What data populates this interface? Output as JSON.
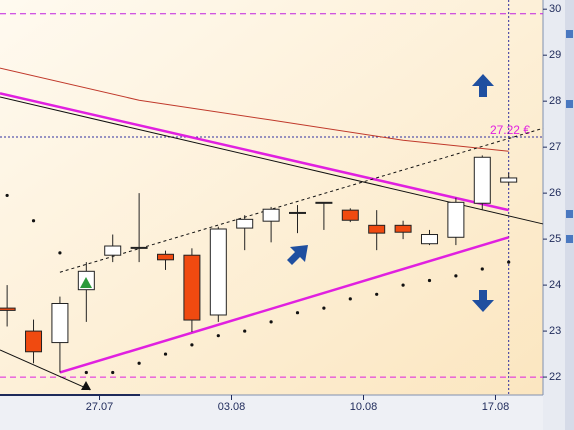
{
  "chart_data": {
    "type": "candlestick",
    "x": [
      0,
      1,
      2,
      3,
      4,
      5,
      6,
      7,
      8,
      9,
      10,
      11,
      12,
      13,
      14,
      15,
      16,
      17,
      18,
      19
    ],
    "open": [
      23.5,
      23.0,
      22.75,
      23.9,
      24.65,
      24.8,
      24.67,
      24.65,
      23.35,
      25.24,
      25.39,
      25.56,
      25.78,
      25.63,
      25.3,
      25.3,
      24.9,
      25.04,
      25.78,
      26.24
    ],
    "high": [
      24.0,
      23.25,
      23.75,
      24.5,
      25.1,
      26.0,
      24.75,
      24.8,
      25.27,
      25.52,
      25.7,
      25.74,
      25.8,
      25.67,
      25.63,
      25.4,
      25.2,
      25.9,
      26.82,
      26.44
    ],
    "low": [
      23.1,
      22.3,
      22.1,
      23.2,
      24.5,
      24.5,
      24.33,
      22.98,
      23.2,
      24.76,
      24.93,
      25.13,
      25.2,
      25.37,
      24.76,
      25.0,
      24.87,
      24.87,
      25.63,
      26.18
    ],
    "close": [
      23.45,
      22.55,
      23.6,
      24.3,
      24.85,
      24.82,
      24.55,
      23.24,
      25.22,
      25.43,
      25.65,
      25.58,
      25.8,
      25.41,
      25.13,
      25.15,
      25.1,
      25.8,
      26.78,
      26.33
    ],
    "up_color": "#ffffff",
    "down_color": "#f04a10",
    "dots": {
      "color": "#111111",
      "upper": [
        25.95,
        25.4,
        24.7,
        null,
        null,
        null,
        null,
        null,
        null,
        null,
        null,
        null,
        null,
        null,
        null,
        null,
        null,
        null,
        null,
        null
      ],
      "lower": [
        null,
        null,
        null,
        22.1,
        22.1,
        22.3,
        22.5,
        22.7,
        22.9,
        23.0,
        23.2,
        23.4,
        23.5,
        23.7,
        23.8,
        24.0,
        24.1,
        24.2,
        24.35,
        24.5
      ]
    },
    "overlays": [
      {
        "color": "#c0392b",
        "width": 1,
        "dash": false,
        "x": [
          -0.27,
          5,
          10,
          15,
          19
        ],
        "y": [
          28.72,
          28.02,
          27.59,
          27.15,
          26.91
        ]
      },
      {
        "color": "#e020e0",
        "width": 2.5,
        "dash": false,
        "x": [
          -0.27,
          19
        ],
        "y": [
          28.17,
          25.63
        ]
      },
      {
        "color": "#e020e0",
        "width": 2.5,
        "dash": false,
        "x": [
          2,
          19
        ],
        "y": [
          22.1,
          25.04
        ]
      },
      {
        "color": "#111111",
        "width": 1,
        "dash": false,
        "x": [
          -0.27,
          20.3
        ],
        "y": [
          28.09,
          25.33
        ]
      },
      {
        "color": "#111111",
        "width": 1,
        "dash": true,
        "x": [
          2,
          20.3
        ],
        "y": [
          24.28,
          27.41
        ]
      },
      {
        "color": "#111111",
        "width": 1,
        "dash": false,
        "x": [
          -0.27,
          3.15
        ],
        "y": [
          22.59,
          21.72
        ]
      }
    ],
    "levels": [
      {
        "value": 29.9,
        "color": "#c020e0"
      },
      {
        "value": 27.22,
        "color": "#3030a0",
        "label": "27.22 €"
      },
      {
        "value": 22.0,
        "color": "#e020e0"
      }
    ],
    "xlim": [
      -0.27,
      20.3
    ],
    "ylim": [
      21.61,
      30.2
    ],
    "xticks": [
      {
        "value": 3.5,
        "label": "27.07"
      },
      {
        "value": 8.5,
        "label": "03.08"
      },
      {
        "value": 13.5,
        "label": "10.08"
      },
      {
        "value": 18.5,
        "label": "17.08"
      }
    ],
    "yticks": [
      22,
      23,
      24,
      25,
      26,
      27,
      28,
      29,
      30
    ]
  }
}
